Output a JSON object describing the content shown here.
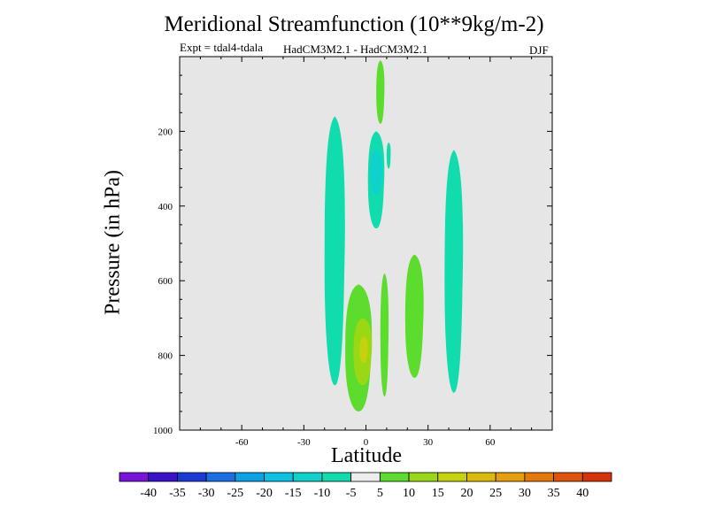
{
  "chart_data": {
    "type": "heatmap",
    "title": "Meridional Streamfunction (10**9kg/m-2)",
    "subtitle_left": "Expt = tdal4-tdala",
    "subtitle_center": "HadCM3M2.1 - HadCM3M2.1",
    "subtitle_right": "DJF",
    "xlabel": "Latitude",
    "ylabel": "Pressure (in hPa)",
    "xlim": [
      -90,
      90
    ],
    "ylim": [
      1000,
      0
    ],
    "x_ticks": [
      -60,
      -30,
      0,
      30,
      60
    ],
    "y_ticks": [
      200,
      400,
      600,
      800,
      1000
    ],
    "background_color": "#e6e6e6",
    "colorbar": {
      "bounds": [
        -40,
        -35,
        -30,
        -25,
        -20,
        -15,
        -10,
        -5,
        5,
        10,
        15,
        20,
        25,
        30,
        35,
        40
      ],
      "colors": [
        "#7a12dd",
        "#3a12cc",
        "#1a3ad8",
        "#1a6ee6",
        "#0aa2e6",
        "#0ac2e6",
        "#10d2cc",
        "#10dcae",
        "#ededed",
        "#5cdc2c",
        "#9ad816",
        "#c6d20c",
        "#dcba08",
        "#e89e0a",
        "#e6780a",
        "#e0540a",
        "#d8320a"
      ]
    },
    "regions": [
      {
        "level": "-10 to -5",
        "lat": [
          -20,
          -10
        ],
        "pressure": [
          160,
          880
        ]
      },
      {
        "level": "-10 to -5",
        "lat": [
          1,
          9
        ],
        "pressure": [
          200,
          460
        ]
      },
      {
        "level": "-15 to -10",
        "lat": [
          2,
          8
        ],
        "pressure": [
          250,
          370
        ]
      },
      {
        "level": "5 to 10",
        "lat": [
          5,
          9
        ],
        "pressure": [
          10,
          180
        ]
      },
      {
        "level": "5 to 10",
        "lat": [
          7,
          11
        ],
        "pressure": [
          580,
          910
        ]
      },
      {
        "level": "-10 to -5",
        "lat": [
          10,
          12
        ],
        "pressure": [
          230,
          300
        ]
      },
      {
        "level": "5 to 10",
        "lat": [
          -10,
          3
        ],
        "pressure": [
          610,
          950
        ]
      },
      {
        "level": "10 to 15",
        "lat": [
          -6,
          3
        ],
        "pressure": [
          700,
          880
        ]
      },
      {
        "level": "15 to 20",
        "lat": [
          -3,
          1
        ],
        "pressure": [
          750,
          820
        ]
      },
      {
        "level": "5 to 10",
        "lat": [
          19,
          28
        ],
        "pressure": [
          530,
          860
        ]
      },
      {
        "level": "-10 to -5",
        "lat": [
          38,
          47
        ],
        "pressure": [
          250,
          900
        ]
      }
    ]
  }
}
